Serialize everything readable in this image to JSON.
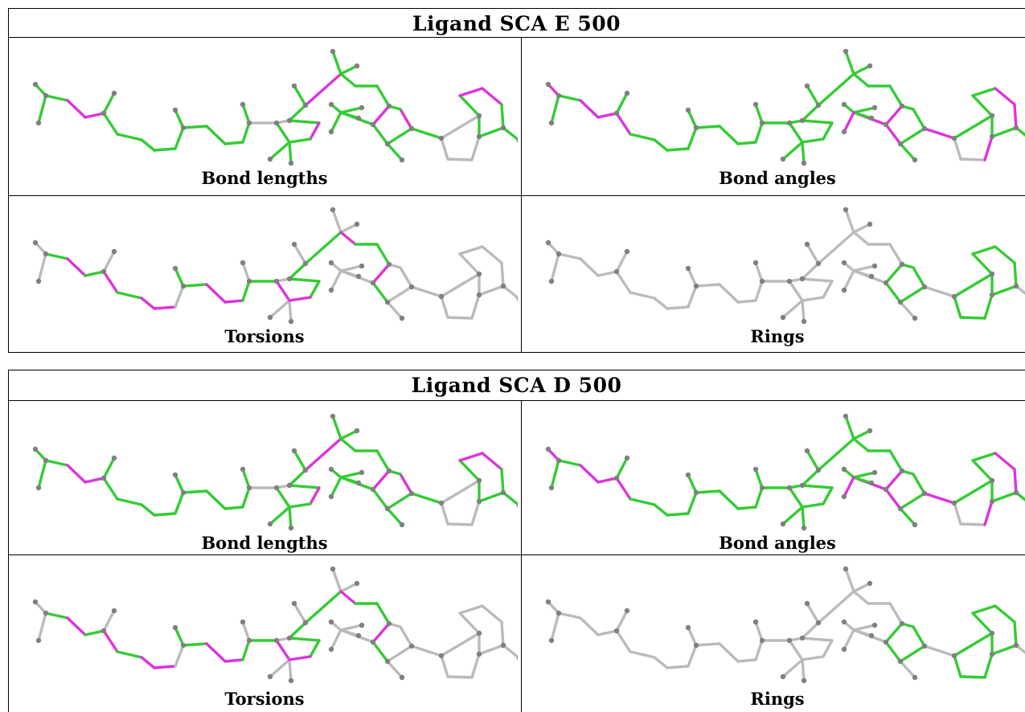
{
  "figures": [
    {
      "title": "Ligand SCA E 500",
      "panels": [
        {
          "caption": "Bond lengths",
          "kind": "lengths"
        },
        {
          "caption": "Bond angles",
          "kind": "angles"
        },
        {
          "caption": "Torsions",
          "kind": "torsions"
        },
        {
          "caption": "Rings",
          "kind": "rings"
        }
      ]
    },
    {
      "title": "Ligand SCA D 500",
      "panels": [
        {
          "caption": "Bond lengths",
          "kind": "lengths"
        },
        {
          "caption": "Bond angles",
          "kind": "angles"
        },
        {
          "caption": "Torsions",
          "kind": "torsions"
        },
        {
          "caption": "Rings",
          "kind": "rings"
        }
      ]
    }
  ],
  "colors": {
    "good": "#33cc33",
    "outlier": "#dd33dd",
    "neutral": "#bbbbbb",
    "atom": "#808080",
    "border": "#000000"
  }
}
